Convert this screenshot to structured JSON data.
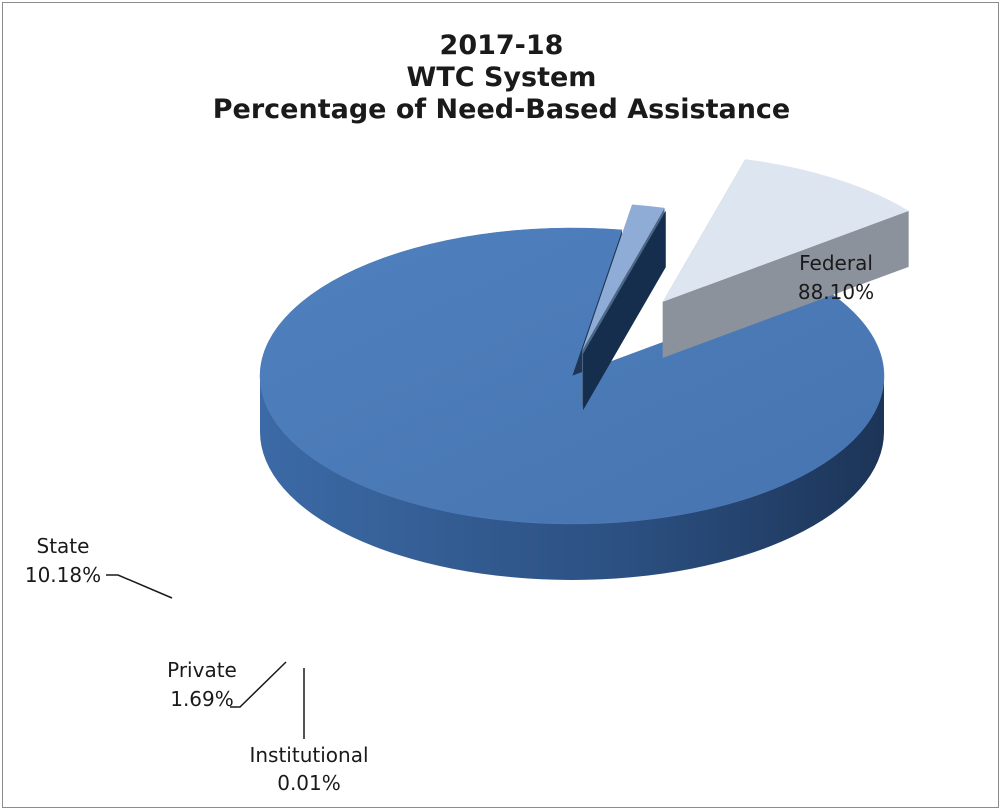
{
  "chart_data": {
    "type": "pie",
    "title_lines": [
      "2017-18",
      "WTC System",
      "Percentage of Need-Based Assistance"
    ],
    "slices": [
      {
        "name": "Federal",
        "value": 88.1,
        "label": "88.10%",
        "color": "#4a7ab8",
        "side_color": "#2e5284",
        "dark_color": "#1f3554"
      },
      {
        "name": "Private",
        "value": 1.69,
        "label": "1.69%",
        "color": "#8eacd6",
        "side_color": "#6c88b0",
        "dark_color": "#4d6787"
      },
      {
        "name": "Institutional",
        "value": 0.01,
        "label": "0.01%",
        "color": "#274e7c",
        "side_color": "#1f3f66",
        "dark_color": "#162e4d"
      },
      {
        "name": "State",
        "value": 10.18,
        "label": "10.18%",
        "color": "#dde5f0",
        "side_color": "#b2b9c4",
        "dark_color": "#8b929c"
      }
    ],
    "legend": "none",
    "view": "3d-exploded"
  }
}
